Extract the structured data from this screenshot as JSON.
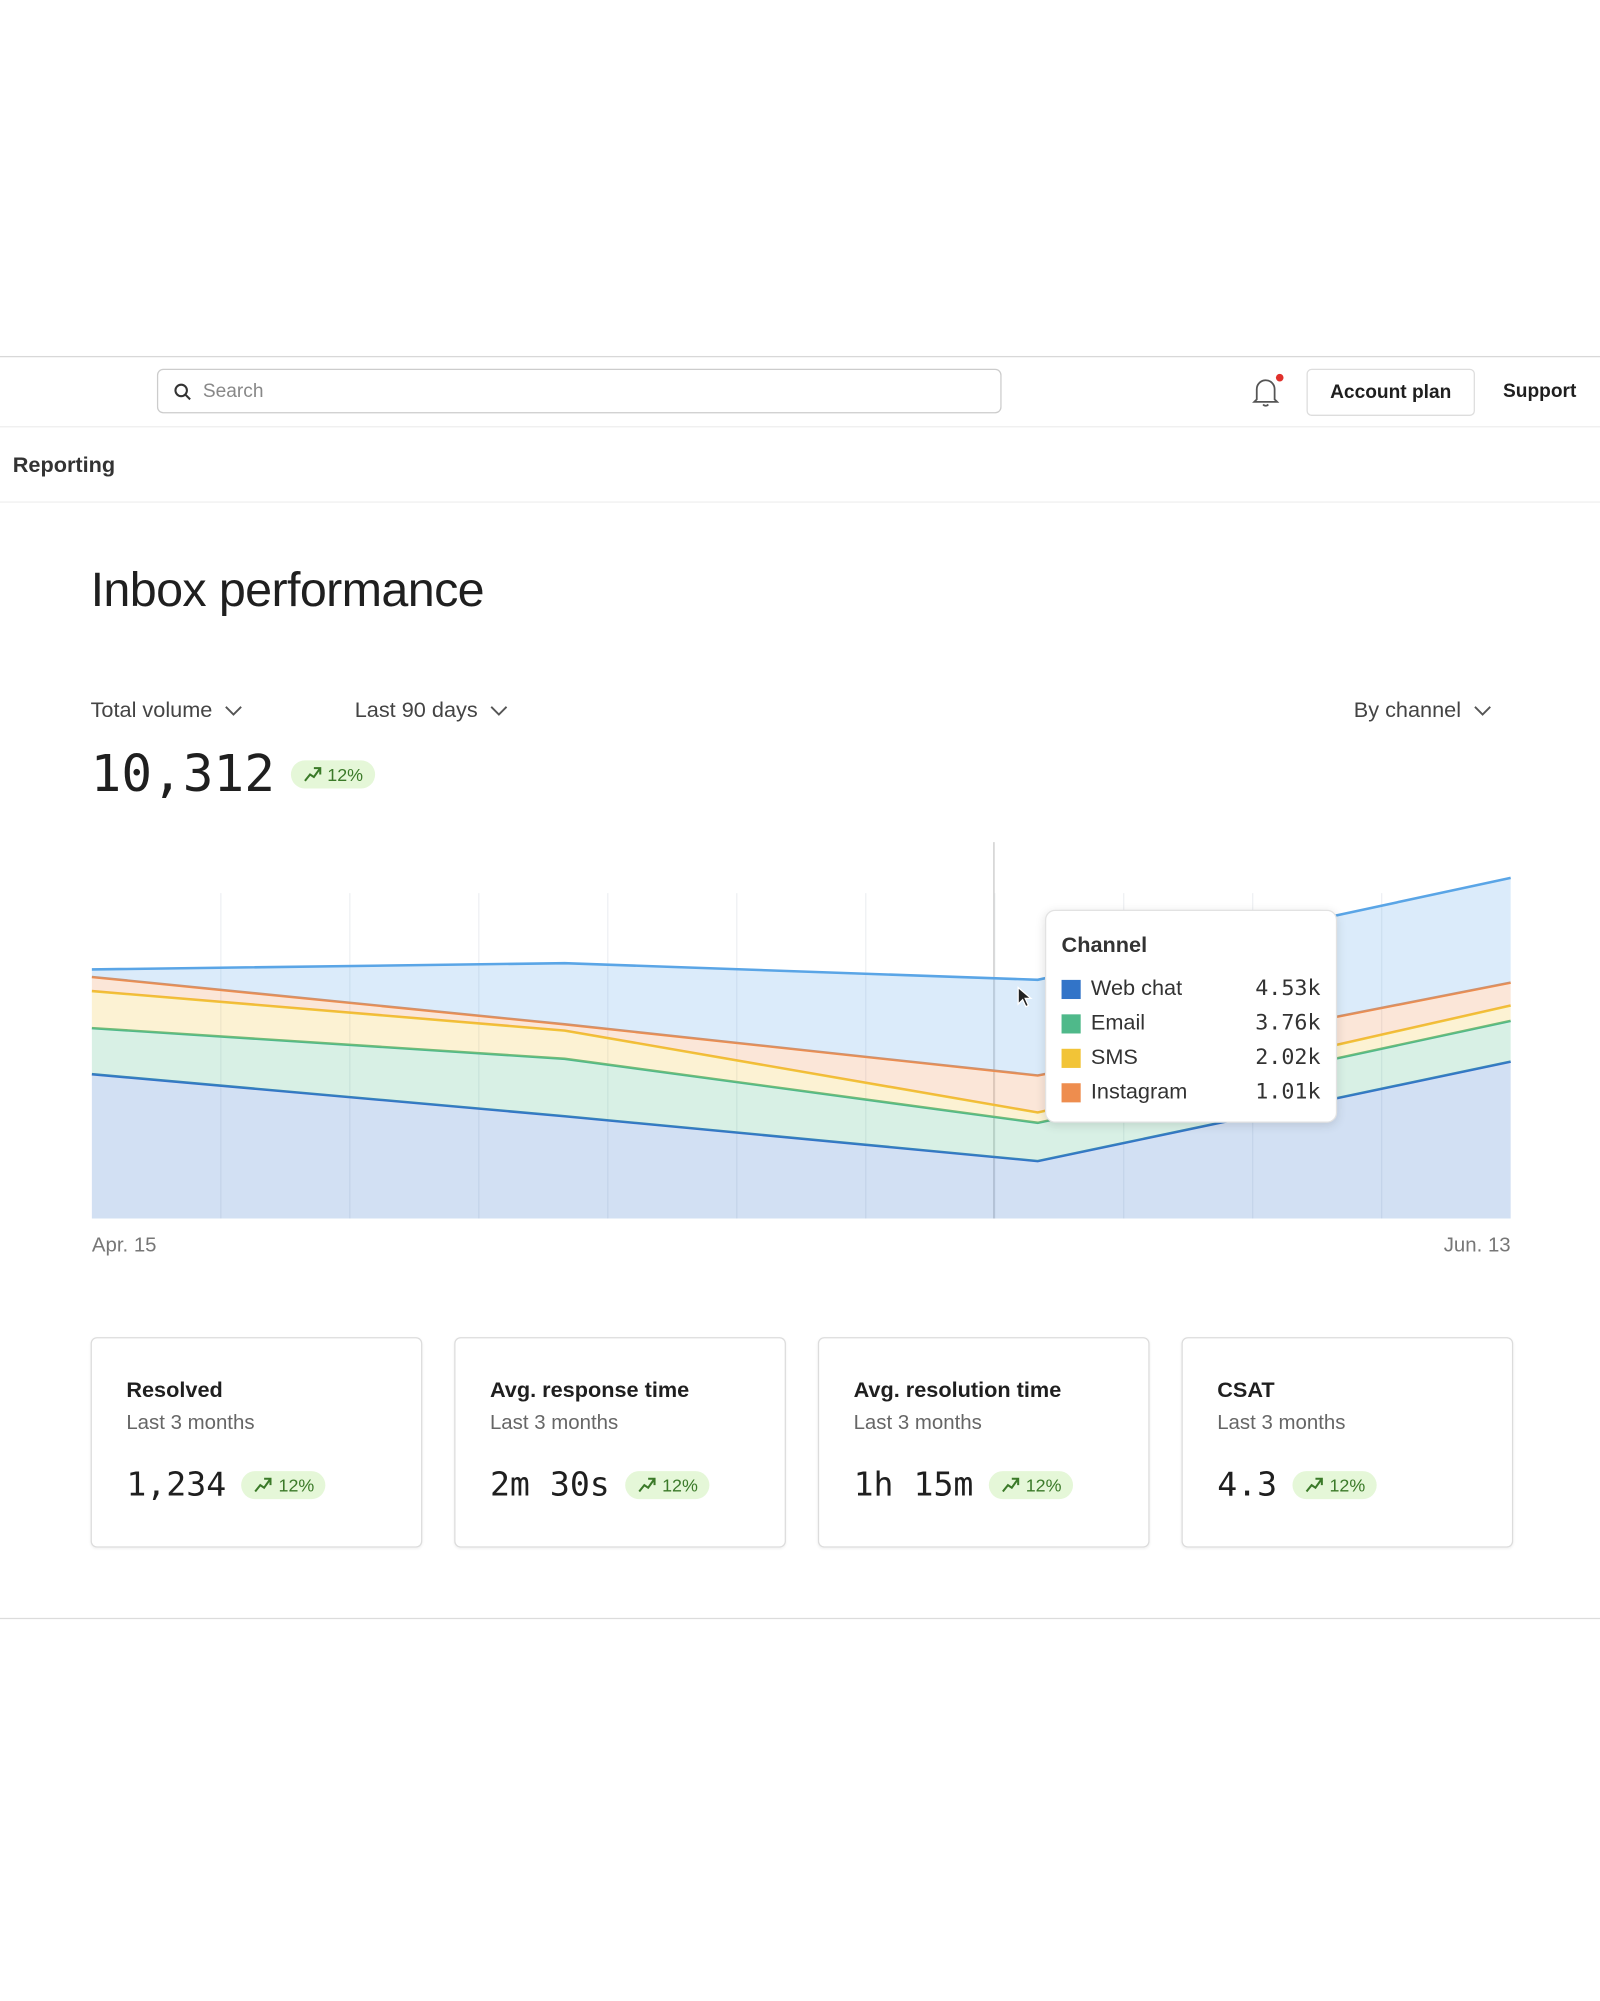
{
  "header": {
    "search_placeholder": "Search",
    "account_plan": "Account plan",
    "support": "Support"
  },
  "breadcrumb": "Reporting",
  "page_title": "Inbox performance",
  "controls": {
    "metric": "Total volume",
    "range": "Last 90 days",
    "grouping": "By channel"
  },
  "total": {
    "value": "10,312",
    "trend": "12%"
  },
  "chart_data": {
    "type": "area",
    "stacked": true,
    "categories": [
      "Apr. 15",
      null,
      null,
      "Jun. 13"
    ],
    "ylim": [
      0,
      12000
    ],
    "series": [
      {
        "name": "Web chat",
        "color": "#3274c8",
        "values": [
          4600,
          3260,
          1830,
          5000
        ]
      },
      {
        "name": "Email",
        "color": "#4fb98a",
        "values": [
          1470,
          1830,
          1220,
          1300
        ]
      },
      {
        "name": "SMS",
        "color": "#f2c437",
        "values": [
          1180,
          900,
          330,
          490
        ]
      },
      {
        "name": "Instagram",
        "color": "#ee8d4e",
        "values": [
          450,
          200,
          1180,
          730
        ]
      },
      {
        "color": "#5aa5e6",
        "values": [
          240,
          1950,
          3050,
          3340
        ]
      }
    ],
    "tooltip": {
      "title": "Channel",
      "value_labels": [
        "4.53k",
        "3.76k",
        "2.02k",
        "1.01k"
      ]
    }
  },
  "cards": [
    {
      "title": "Resolved",
      "subtitle": "Last 3 months",
      "value": "1,234",
      "trend": "12%"
    },
    {
      "title": "Avg. response time",
      "subtitle": "Last 3 months",
      "value": "2m 30s",
      "trend": "12%"
    },
    {
      "title": "Avg. resolution time",
      "subtitle": "Last 3 months",
      "value": "1h 15m",
      "trend": "12%"
    },
    {
      "title": "CSAT",
      "subtitle": "Last 3 months",
      "value": "4.3",
      "trend": "12%"
    }
  ]
}
